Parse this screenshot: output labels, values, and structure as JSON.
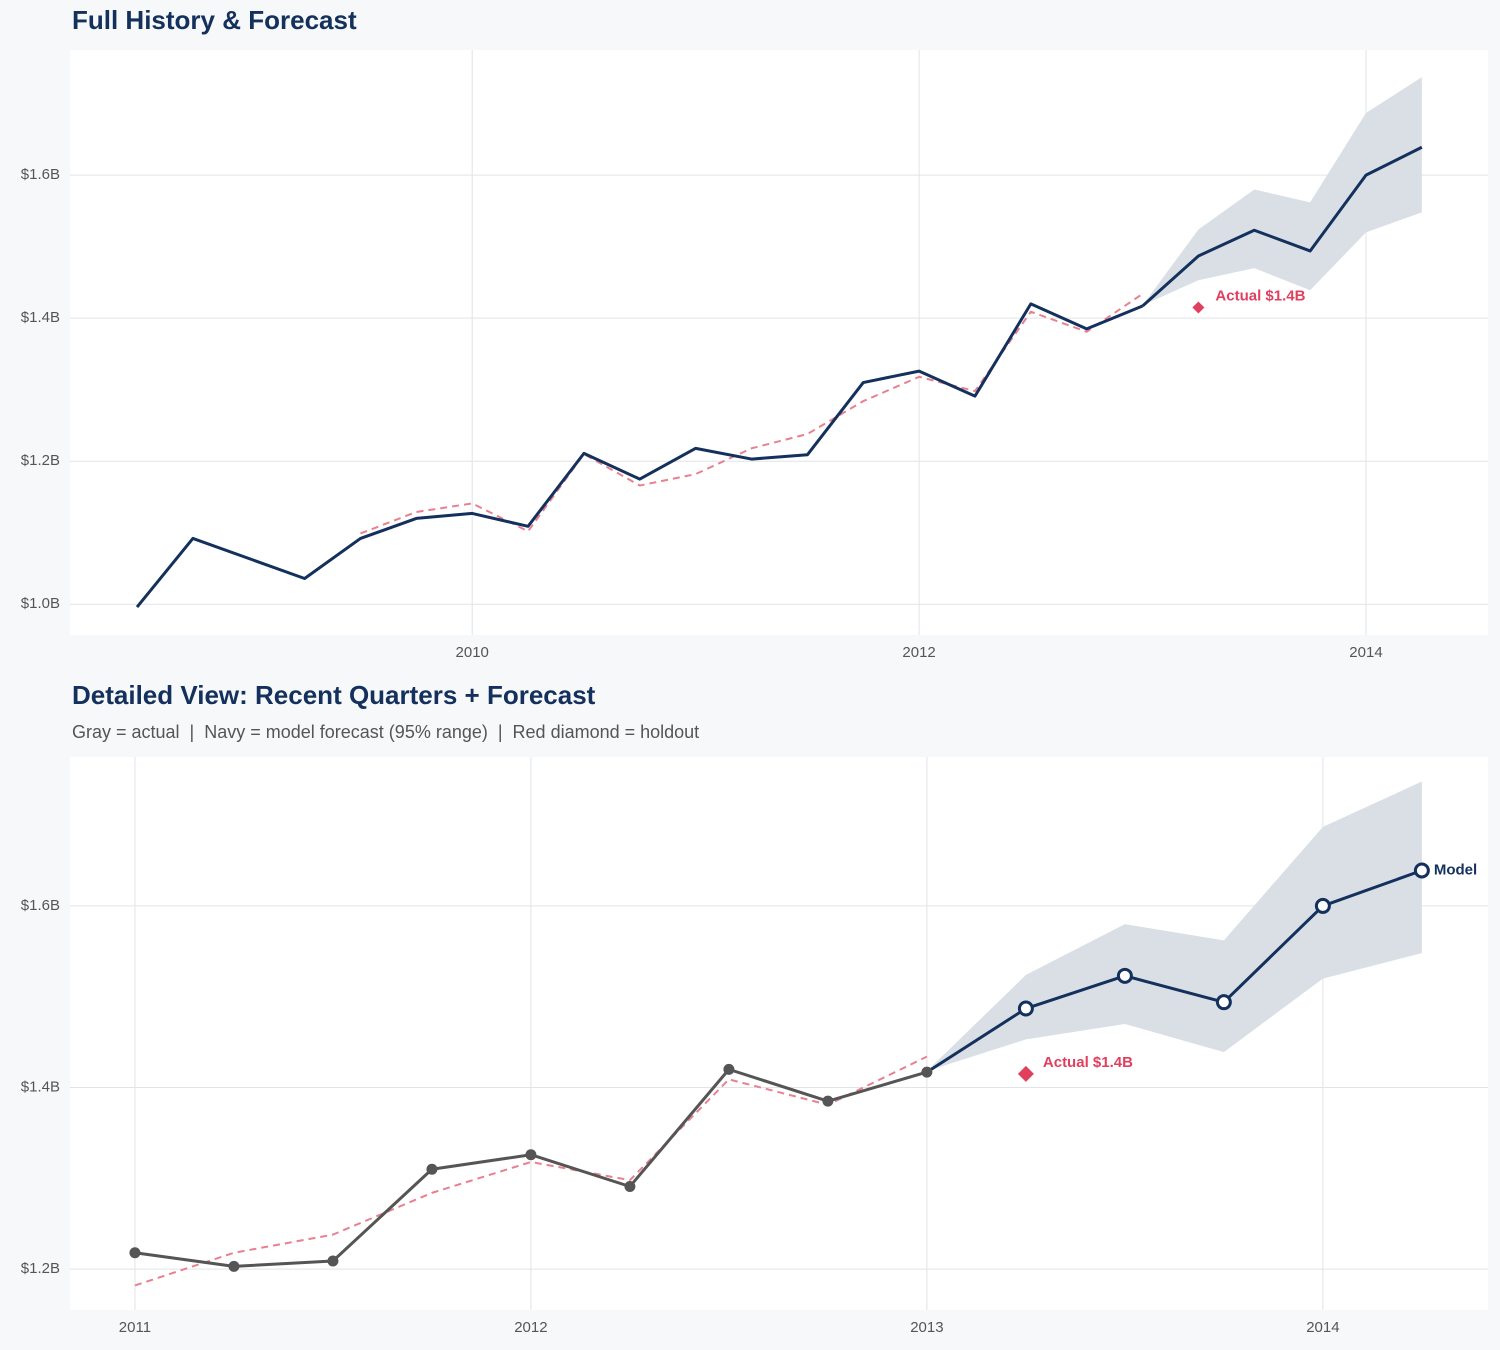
{
  "chart_data": [
    {
      "type": "line",
      "title": "Full History & Forecast",
      "xlim": [
        2008.2,
        2014.546
      ],
      "ylim": [
        0.957,
        1.775
      ],
      "xticks": [
        2010,
        2012,
        2014
      ],
      "yticks": [
        {
          "value": 1.0,
          "label": "$1.0B"
        },
        {
          "value": 1.2,
          "label": "$1.2B"
        },
        {
          "value": 1.4,
          "label": "$1.4B"
        },
        {
          "value": 1.6,
          "label": "$1.6B"
        }
      ],
      "grid": true,
      "band": {
        "color": "#dadfe6",
        "x": [
          2013.0,
          2013.25,
          2013.5,
          2013.75,
          2014.0,
          2014.25
        ],
        "lower": [
          1.418,
          1.453,
          1.47,
          1.439,
          1.52,
          1.548
        ],
        "upper": [
          1.418,
          1.524,
          1.58,
          1.562,
          1.687,
          1.737
        ]
      },
      "series": [
        {
          "color": "#e8808f",
          "line_style": "dashed",
          "x": [
            2009.5,
            2009.75,
            2010.0,
            2010.25,
            2010.5,
            2010.75,
            2011.0,
            2011.25,
            2011.5,
            2011.75,
            2012.0,
            2012.25,
            2012.5,
            2012.75,
            2013.0
          ],
          "values": [
            1.099,
            1.129,
            1.141,
            1.102,
            1.21,
            1.166,
            1.182,
            1.218,
            1.238,
            1.284,
            1.318,
            1.298,
            1.409,
            1.381,
            1.434
          ]
        },
        {
          "color": "#13315c",
          "line_style": "solid",
          "x": [
            2008.5,
            2008.75,
            2009.25,
            2009.5,
            2009.75,
            2010.0,
            2010.25,
            2010.5,
            2010.75,
            2011.0,
            2011.25,
            2011.5,
            2011.75,
            2012.0,
            2012.25,
            2012.5,
            2012.75,
            2013.0
          ],
          "values": [
            0.996,
            1.092,
            1.036,
            1.092,
            1.12,
            1.127,
            1.109,
            1.211,
            1.175,
            1.218,
            1.203,
            1.209,
            1.31,
            1.326,
            1.291,
            1.42,
            1.385,
            1.417
          ]
        },
        {
          "color": "#13315c",
          "line_style": "solid",
          "x": [
            2013.0,
            2013.25,
            2013.5,
            2013.75,
            2014.0,
            2014.25
          ],
          "values": [
            1.417,
            1.487,
            1.523,
            1.494,
            1.6,
            1.639
          ]
        }
      ],
      "holdout": {
        "x": 2013.25,
        "value": 1.415,
        "label": "Actual $1.4B",
        "color": "#e0405e"
      }
    },
    {
      "type": "line",
      "title": "Detailed View: Recent Quarters + Forecast",
      "subtitle": "Gray = actual  |  Navy = model forecast (95% range)  |  Red diamond = holdout",
      "xlim": [
        2010.836,
        2014.417
      ],
      "ylim": [
        1.155,
        1.764
      ],
      "xticks": [
        2011,
        2012,
        2013,
        2014
      ],
      "yticks": [
        {
          "value": 1.2,
          "label": "$1.2B"
        },
        {
          "value": 1.4,
          "label": "$1.4B"
        },
        {
          "value": 1.6,
          "label": "$1.6B"
        }
      ],
      "grid": true,
      "band": {
        "color": "#dadfe6",
        "x": [
          2013.0,
          2013.25,
          2013.5,
          2013.75,
          2014.0,
          2014.25
        ],
        "lower": [
          1.418,
          1.453,
          1.47,
          1.439,
          1.52,
          1.548
        ],
        "upper": [
          1.418,
          1.524,
          1.58,
          1.562,
          1.687,
          1.737
        ]
      },
      "series": [
        {
          "color": "#e8808f",
          "line_style": "dashed",
          "x": [
            2011.0,
            2011.25,
            2011.5,
            2011.75,
            2012.0,
            2012.25,
            2012.5,
            2012.75,
            2013.0
          ],
          "values": [
            1.182,
            1.218,
            1.238,
            1.284,
            1.318,
            1.298,
            1.409,
            1.381,
            1.434
          ]
        },
        {
          "name": "Model",
          "color": "#13315c",
          "line_style": "solid",
          "marker": "open",
          "x": [
            2013.0,
            2013.25,
            2013.5,
            2013.75,
            2014.0,
            2014.25
          ],
          "values": [
            1.417,
            1.487,
            1.523,
            1.494,
            1.6,
            1.639
          ]
        },
        {
          "color": "#555555",
          "line_style": "solid",
          "marker": "filled",
          "x": [
            2011.0,
            2011.25,
            2011.5,
            2011.75,
            2012.0,
            2012.25,
            2012.5,
            2012.75,
            2013.0
          ],
          "values": [
            1.218,
            1.203,
            1.209,
            1.31,
            1.326,
            1.291,
            1.42,
            1.385,
            1.417
          ]
        }
      ],
      "holdout": {
        "x": 2013.25,
        "value": 1.415,
        "label": "Actual $1.4B",
        "color": "#e0405e"
      }
    }
  ]
}
